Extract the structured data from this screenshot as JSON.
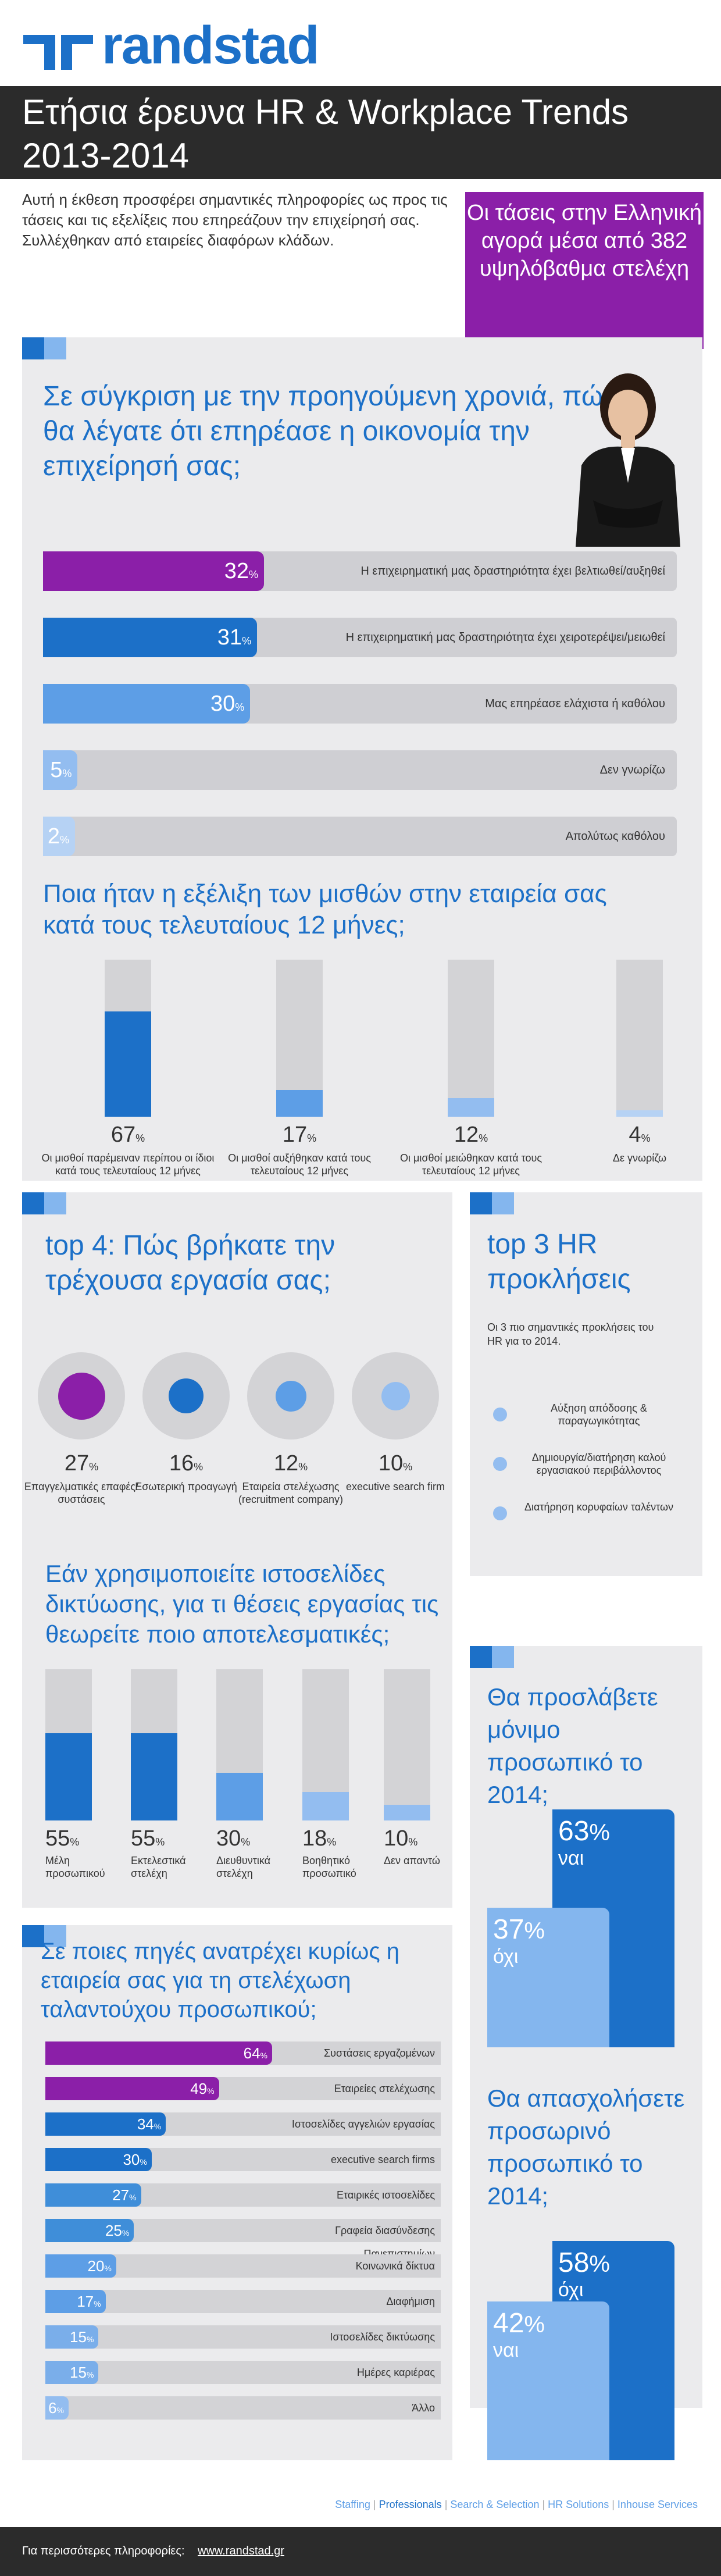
{
  "brand": {
    "name": "randstad",
    "color": "#1c70c8"
  },
  "title": {
    "line1": "Ετήσια έρευνα HR & Workplace Trends",
    "line2": "2013-2014"
  },
  "intro": "Αυτή η έκθεση προσφέρει σημαντικές πληροφορίες ως προς τις τάσεις και τις εξελίξεις που επηρεάζουν την επιχείρησή σας. Συλλέχθηκαν από εταιρείες διαφόρων κλάδων.",
  "callout": "Οι τάσεις στην Ελληνική αγορά μέσα από 382 υψηλόβαθμα στελέχη",
  "colors": {
    "purple": "#8b1fa8",
    "blue": "#1c70c8",
    "mid_blue": "#5d9ee6",
    "light_blue": "#93bdf0",
    "pale_blue": "#b6d2f4",
    "grey_panel": "#ebebed",
    "track": "#d3d3d6"
  },
  "q1": {
    "heading": "Σε σύγκριση με την προηγούμενη χρονιά, πώς θα λέγατε ότι επηρέασε η οικονομία την επιχείρησή σας;",
    "rows": [
      {
        "value": 32,
        "unit": "%",
        "label": "Η επιχειρηματική μας δραστηριότητα έχει βελτιωθεί/αυξηθεί",
        "color": "#8b1fa8"
      },
      {
        "value": 31,
        "unit": "%",
        "label": "Η επιχειρηματική μας δραστηριότητα έχει χειροτερέψει/μειωθεί",
        "color": "#1c70c8"
      },
      {
        "value": 30,
        "unit": "%",
        "label": "Μας επηρέασε ελάχιστα ή καθόλου",
        "color": "#5d9ee6"
      },
      {
        "value": 5,
        "unit": "%",
        "label": "Δεν γνωρίζω",
        "color": "#93bdf0"
      },
      {
        "value": 2,
        "unit": "%",
        "label": "Απολύτως καθόλου",
        "color": "#b6d2f4"
      }
    ]
  },
  "q2": {
    "heading": "Ποια ήταν η εξέλιξη των μισθών στην εταιρεία σας κατά τους τελευταίους 12 μήνες;",
    "bars": [
      {
        "value": 67,
        "unit": "%",
        "caption": "Οι μισθοί παρέμειναν περίπου οι ίδιοι κατά τους τελευταίους 12 μήνες",
        "color": "#1c70c8"
      },
      {
        "value": 17,
        "unit": "%",
        "caption": "Οι μισθοί αυξήθηκαν κατά τους τελευταίους 12 μήνες",
        "color": "#5d9ee6"
      },
      {
        "value": 12,
        "unit": "%",
        "caption": "Οι μισθοί μειώθηκαν κατά τους τελευταίους 12 μήνες",
        "color": "#93bdf0"
      },
      {
        "value": 4,
        "unit": "%",
        "caption": "Δε γνωρίζω",
        "color": "#b6d2f4"
      }
    ]
  },
  "q3": {
    "heading": "top 4:   Πώς βρήκατε την τρέχουσα εργασία σας;",
    "items": [
      {
        "value": 27,
        "unit": "%",
        "caption": "Επαγγελματικές επαφές/συστάσεις",
        "color": "#8b1fa8"
      },
      {
        "value": 16,
        "unit": "%",
        "caption": "Εσωτερική προαγωγή",
        "color": "#1c70c8"
      },
      {
        "value": 12,
        "unit": "%",
        "caption": "Εταιρεία στελέχωσης (recruitment company)",
        "color": "#5d9ee6"
      },
      {
        "value": 10,
        "unit": "%",
        "caption": "executive search firm",
        "color": "#93bdf0"
      }
    ]
  },
  "q4": {
    "heading": "top 3 HR προκλήσεις",
    "sub": "Οι 3 πιο σημαντικές προκλήσεις του HR για το 2014.",
    "items": [
      {
        "label": "Αύξηση απόδοσης & παραγωγικότητας"
      },
      {
        "label": "Δημιουργία/διατήρηση καλού εργασιακού περιβάλλοντος"
      },
      {
        "label": "Διατήρηση κορυφαίων ταλέντων"
      }
    ]
  },
  "q5": {
    "heading": "Εάν χρησιμοποιείτε ιστοσελίδες δικτύωσης, για τι θέσεις εργασίας τις θεωρείτε ποιο αποτελεσματικές;",
    "bars": [
      {
        "value": 55,
        "unit": "%",
        "caption": "Μέλη προσωπικού",
        "color": "#1c70c8"
      },
      {
        "value": 55,
        "unit": "%",
        "caption": "Εκτελεστικά στελέχη",
        "color": "#1c70c8"
      },
      {
        "value": 30,
        "unit": "%",
        "caption": "Διευθυντικά στελέχη",
        "color": "#5d9ee6"
      },
      {
        "value": 18,
        "unit": "%",
        "caption": "Βοηθητικό προσωπικό",
        "color": "#93bdf0"
      },
      {
        "value": 10,
        "unit": "%",
        "caption": "Δεν απαντώ",
        "color": "#93bdf0"
      }
    ]
  },
  "q6": {
    "heading": "Θα προσλάβετε μόνιμο προσωπικό το 2014;",
    "yes": {
      "value": 63,
      "unit": "%",
      "label": "ναι"
    },
    "no": {
      "value": 37,
      "unit": "%",
      "label": "όχι"
    }
  },
  "q7": {
    "heading": "Θα απασχολήσετε προσωρινό προσωπικό το 2014;",
    "no": {
      "value": 58,
      "unit": "%",
      "label": "όχι"
    },
    "yes": {
      "value": 42,
      "unit": "%",
      "label": "ναι"
    }
  },
  "q8": {
    "heading": "Σε ποιες πηγές ανατρέχει κυρίως η εταιρεία σας για τη στελέχωση ταλαντούχου προσωπικού;",
    "rows": [
      {
        "value": 64,
        "unit": "%",
        "label": "Συστάσεις εργαζομένων",
        "color": "#8b1fa8"
      },
      {
        "value": 49,
        "unit": "%",
        "label": "Εταιρείες στελέχωσης",
        "color": "#8b1fa8"
      },
      {
        "value": 34,
        "unit": "%",
        "label": "Ιστοσελίδες αγγελιών εργασίας",
        "color": "#1c70c8"
      },
      {
        "value": 30,
        "unit": "%",
        "label": "executive search firms",
        "color": "#1c70c8"
      },
      {
        "value": 27,
        "unit": "%",
        "label": "Εταιρικές ιστοσελίδες",
        "color": "#3f8ed9"
      },
      {
        "value": 25,
        "unit": "%",
        "label": "Γραφεία διασύνδεσης Πανεπιστημίων",
        "color": "#3f8ed9"
      },
      {
        "value": 20,
        "unit": "%",
        "label": "Κοινωνικά δίκτυα",
        "color": "#5d9ee6"
      },
      {
        "value": 17,
        "unit": "%",
        "label": "Διαφήμιση",
        "color": "#5d9ee6"
      },
      {
        "value": 15,
        "unit": "%",
        "label": "Ιστοσελίδες δικτύωσης",
        "color": "#7aaeea"
      },
      {
        "value": 15,
        "unit": "%",
        "label": "Ημέρες καριέρας",
        "color": "#7aaeea"
      },
      {
        "value": 6,
        "unit": "%",
        "label": "Άλλο",
        "color": "#93bdf0"
      }
    ]
  },
  "footer": {
    "services": [
      "Staffing",
      "Professionals",
      "Search & Selection",
      "HR Solutions",
      "Inhouse Services"
    ],
    "more": "Για περισσότερες πληροφορίες:",
    "url": "www.randstad.gr"
  }
}
